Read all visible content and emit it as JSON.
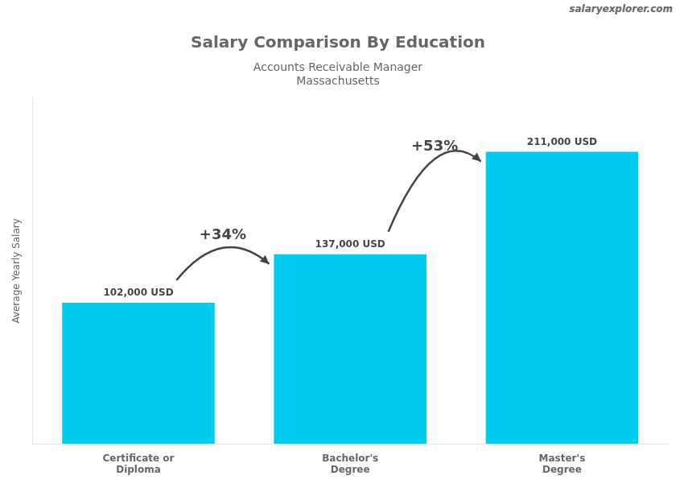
{
  "chart_data": {
    "type": "bar",
    "title": "Salary Comparison By Education",
    "subtitle": "Accounts Receivable Manager",
    "location": "Massachusetts",
    "watermark": "salaryexplorer.com",
    "y_label": "Average Yearly Salary",
    "categories": [
      "Certificate or\nDiploma",
      "Bachelor's\nDegree",
      "Master's\nDegree"
    ],
    "values": [
      102000,
      137000,
      211000
    ],
    "value_labels": [
      "102,000 USD",
      "137,000 USD",
      "211,000 USD"
    ],
    "data_labels": true,
    "color": "#00ccee",
    "ylim": [
      0,
      250000
    ],
    "grid": false,
    "tick_labels": "x",
    "annotations": [
      {
        "text": "+34%",
        "from": "Certificate or\nDiploma",
        "to": "Bachelor's\nDegree"
      },
      {
        "text": "+53%",
        "from": "Bachelor's\nDegree",
        "to": "Master's\nDegree"
      }
    ]
  }
}
